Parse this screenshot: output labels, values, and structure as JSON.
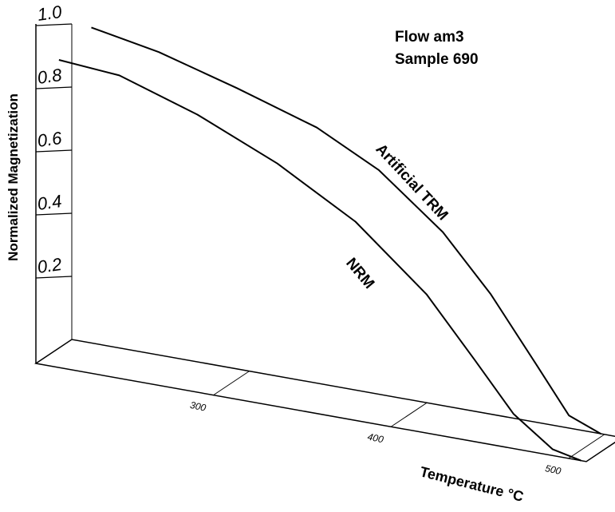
{
  "chart_data": {
    "type": "line",
    "annotations": [
      "Flow am3",
      "Sample 690"
    ],
    "ylabel": "Normalized Magnetization",
    "xlabel": "Temperature °C",
    "xlim": [
      200,
      510
    ],
    "xticks": [
      300,
      400,
      500
    ],
    "ylim": [
      0,
      1
    ],
    "yticks": [
      0.2,
      0.4,
      0.6,
      0.8,
      {
        "value": 1,
        "label": "1.0"
      }
    ],
    "series": [
      {
        "name": "Artificial TRM",
        "color": "#000000",
        "plane": "back",
        "x": [
          211,
          249,
          293,
          338,
          373,
          409,
          436,
          462,
          480,
          498
        ],
        "values": [
          1.0,
          0.96,
          0.89,
          0.81,
          0.71,
          0.55,
          0.38,
          0.18,
          0.04,
          0
        ]
      },
      {
        "name": "NRM",
        "color": "#000000",
        "plane": "front",
        "x": [
          213,
          247,
          291,
          336,
          380,
          420,
          447,
          469,
          491,
          507
        ],
        "values": [
          0.975,
          0.96,
          0.88,
          0.77,
          0.63,
          0.44,
          0.26,
          0.11,
          0.02,
          0
        ]
      }
    ]
  }
}
